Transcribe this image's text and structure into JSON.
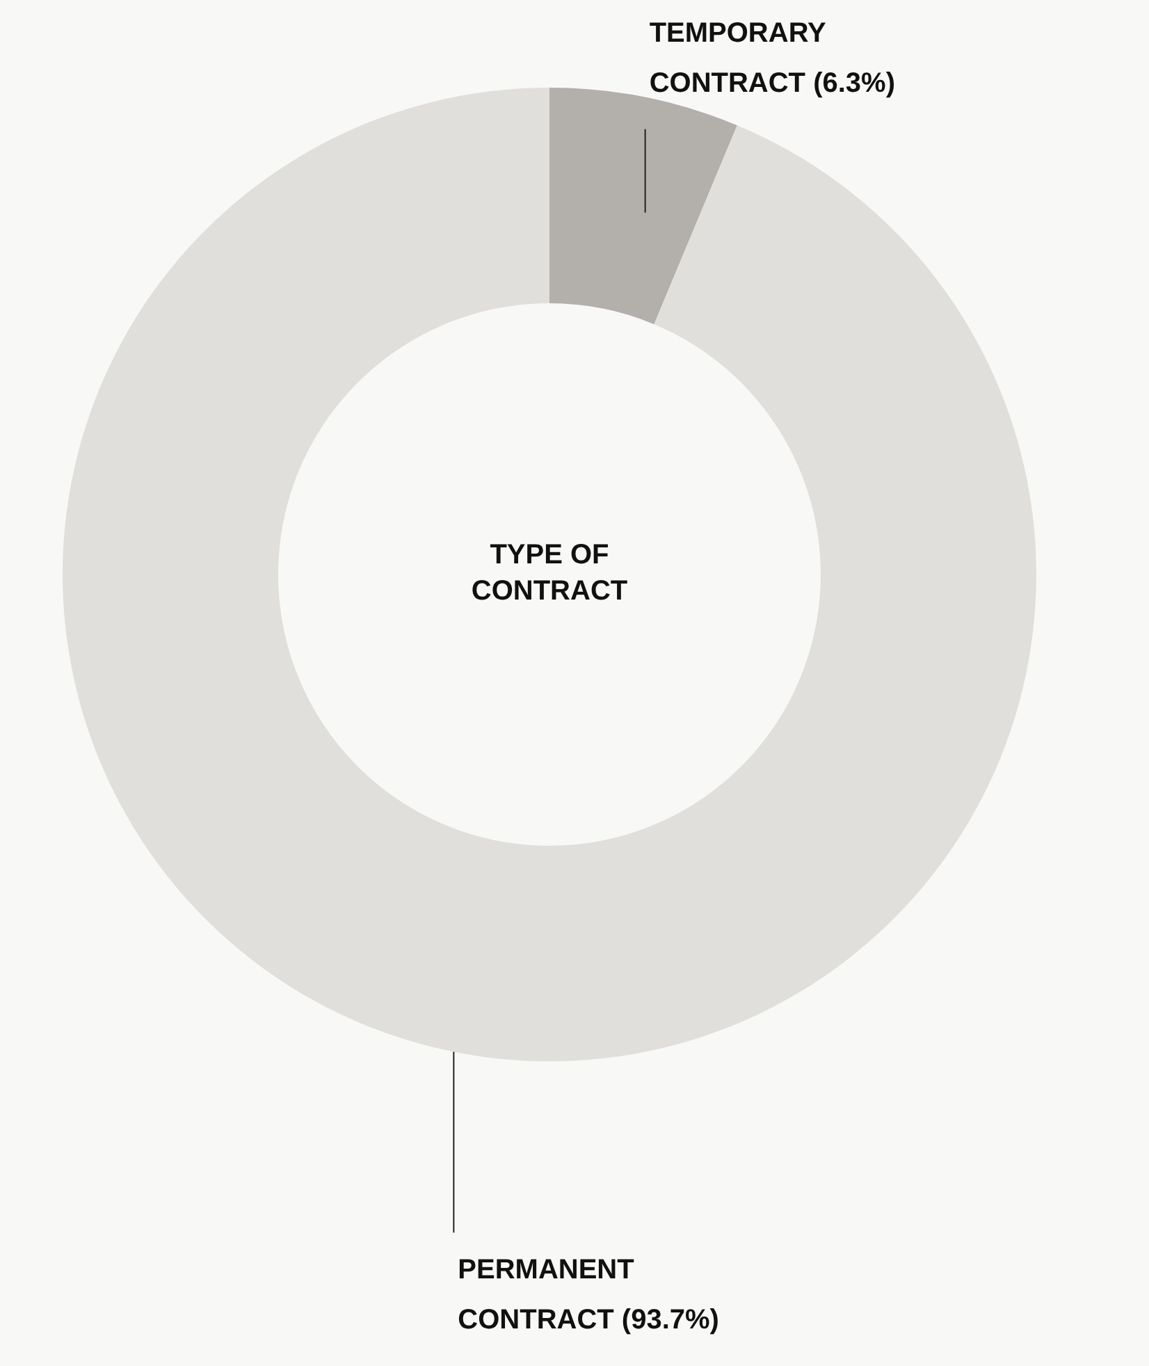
{
  "chart_data": {
    "type": "donut",
    "title": "TYPE OF CONTRACT",
    "categories": [
      "TEMPORARY CONTRACT (6.3%)",
      "PERMANENT CONTRACT (93.7%)"
    ],
    "values": [
      6.3,
      93.7
    ],
    "colors": [
      "#b3b0ab",
      "#e0dfdb"
    ]
  }
}
